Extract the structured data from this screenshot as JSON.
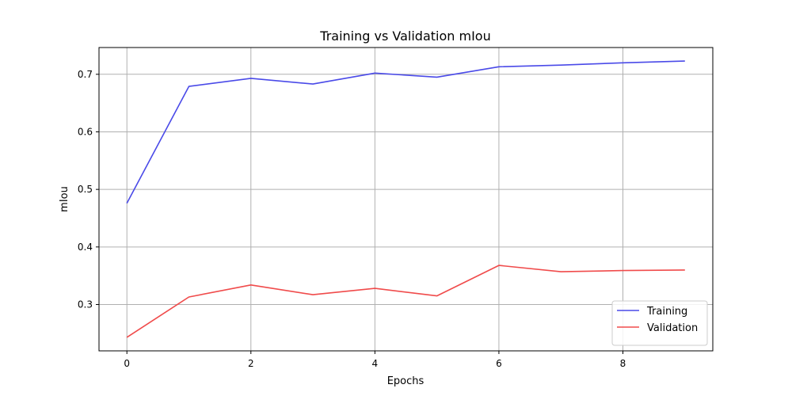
{
  "chart_data": {
    "type": "line",
    "title": "Training vs Validation mIou",
    "xlabel": "Epochs",
    "ylabel": "mIou",
    "xlim": [
      -0.45,
      9.45
    ],
    "ylim": [
      0.2195,
      0.7465
    ],
    "xticks": [
      0,
      2,
      4,
      6,
      8
    ],
    "yticks": [
      0.3,
      0.4,
      0.5,
      0.6,
      0.7
    ],
    "grid": true,
    "legend_position": "lower right",
    "x": [
      0,
      1,
      2,
      3,
      4,
      5,
      6,
      7,
      8,
      9
    ],
    "series": [
      {
        "name": "Training",
        "color": "#4a4ae8",
        "values": [
          0.476,
          0.679,
          0.693,
          0.683,
          0.702,
          0.695,
          0.713,
          0.716,
          0.72,
          0.723
        ]
      },
      {
        "name": "Validation",
        "color": "#f04b4b",
        "values": [
          0.243,
          0.313,
          0.334,
          0.317,
          0.328,
          0.315,
          0.368,
          0.357,
          0.359,
          0.36
        ]
      }
    ]
  }
}
